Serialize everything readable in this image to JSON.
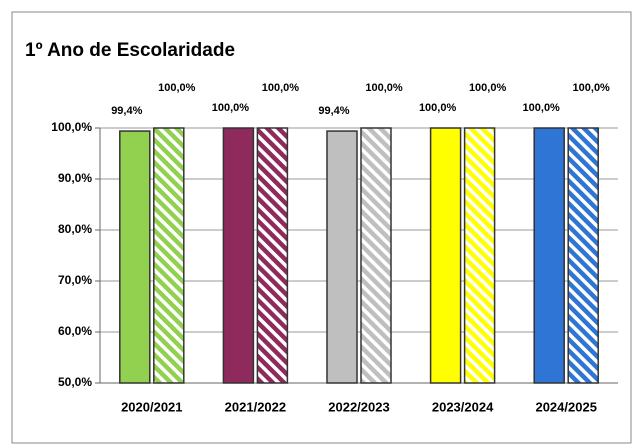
{
  "chart_data": {
    "type": "bar",
    "title": "1º Ano de Escolaridade",
    "categories": [
      "2020/2021",
      "2021/2022",
      "2022/2023",
      "2023/2024",
      "2024/2025"
    ],
    "colors": [
      "#92d050",
      "#8e2b5c",
      "#bfbfbf",
      "#ffff00",
      "#2e75d6"
    ],
    "series": [
      {
        "pattern": "solid",
        "values": [
          99.4,
          100,
          99.4,
          100,
          100
        ],
        "value_labels": [
          "99,4%",
          "100,0%",
          "99,4%",
          "100,0%",
          "100,0%"
        ]
      },
      {
        "pattern": "hatched",
        "values": [
          100,
          100,
          100,
          100,
          100
        ],
        "value_labels": [
          "100,0%",
          "100,0%",
          "100,0%",
          "100,0%",
          "100,0%"
        ]
      }
    ],
    "ylim": [
      50,
      100
    ],
    "yticks": [
      {
        "value": 50,
        "label": "50,0%"
      },
      {
        "value": 60,
        "label": "60,0%"
      },
      {
        "value": 70,
        "label": "70,0%"
      },
      {
        "value": 80,
        "label": "80,0%"
      },
      {
        "value": 90,
        "label": "90,0%"
      },
      {
        "value": 100,
        "label": "100,0%"
      }
    ],
    "grid": true
  }
}
